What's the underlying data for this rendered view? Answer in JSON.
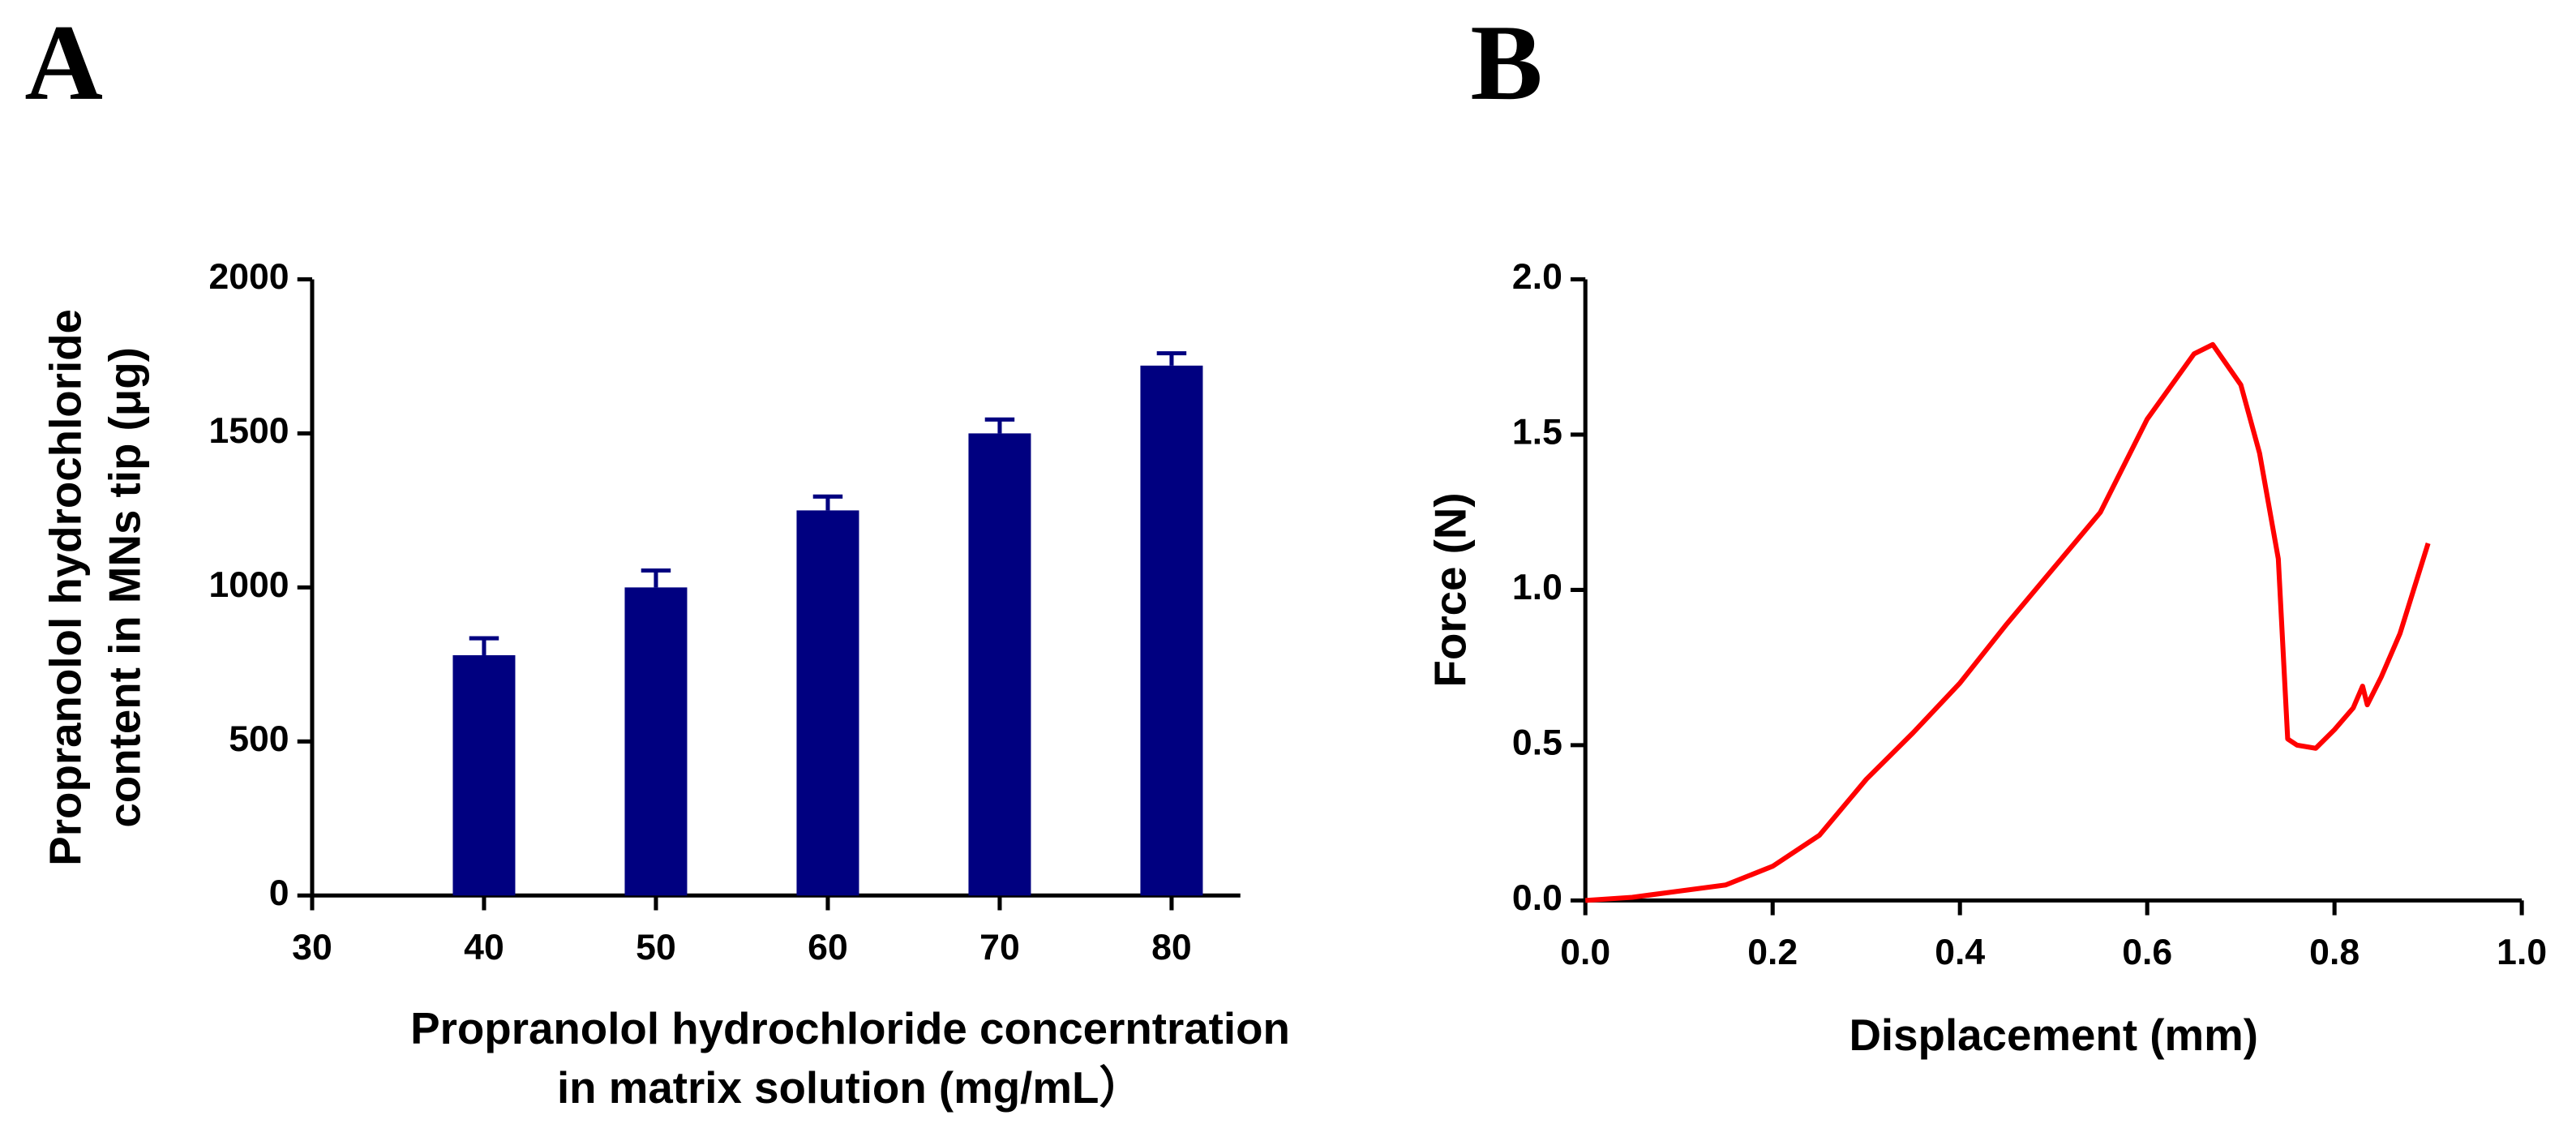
{
  "chart_data": [
    {
      "type": "bar",
      "panel": "A",
      "x_label": [
        "Propranolol hydrochloride concerntration",
        "in matrix solution (mg/mL）"
      ],
      "y_label": [
        "Propranolol hydrochloride",
        "content in MNs tip (μg)"
      ],
      "x": [
        40,
        50,
        60,
        70,
        80
      ],
      "values": [
        780,
        1000,
        1250,
        1500,
        1720
      ],
      "errors": [
        55,
        55,
        45,
        45,
        40
      ],
      "color": "#000080",
      "xlim": [
        30,
        84
      ],
      "xticks": [
        30,
        40,
        50,
        60,
        70,
        80
      ],
      "ylim": [
        0,
        2000
      ],
      "yticks": [
        0,
        500,
        1000,
        1500,
        2000
      ]
    },
    {
      "type": "line",
      "panel": "B",
      "x_label": [
        "Displacement (mm)"
      ],
      "y_label": [
        "Force (N)"
      ],
      "x": [
        0,
        0.05,
        0.1,
        0.15,
        0.2,
        0.25,
        0.3,
        0.35,
        0.4,
        0.45,
        0.5,
        0.55,
        0.6,
        0.65,
        0.67,
        0.7,
        0.72,
        0.74,
        0.75,
        0.76,
        0.78,
        0.8,
        0.82,
        0.83,
        0.835,
        0.85,
        0.87,
        0.9
      ],
      "values": [
        0,
        0.01,
        0.03,
        0.05,
        0.11,
        0.21,
        0.39,
        0.54,
        0.7,
        0.89,
        1.07,
        1.25,
        1.55,
        1.76,
        1.79,
        1.66,
        1.44,
        1.1,
        0.52,
        0.5,
        0.49,
        0.55,
        0.62,
        0.69,
        0.63,
        0.72,
        0.86,
        1.15
      ],
      "color": "#ff0000",
      "xlim": [
        0,
        1
      ],
      "xticks": [
        {
          "value": 0,
          "label": "0.0"
        },
        0.2,
        0.4,
        0.6,
        0.8,
        {
          "value": 1,
          "label": "1.0"
        }
      ],
      "ylim": [
        0,
        2
      ],
      "yticks": [
        {
          "value": 0,
          "label": "0.0"
        },
        0.5,
        {
          "value": 1,
          "label": "1.0"
        },
        1.5,
        {
          "value": 2,
          "label": "2.0"
        }
      ]
    }
  ]
}
